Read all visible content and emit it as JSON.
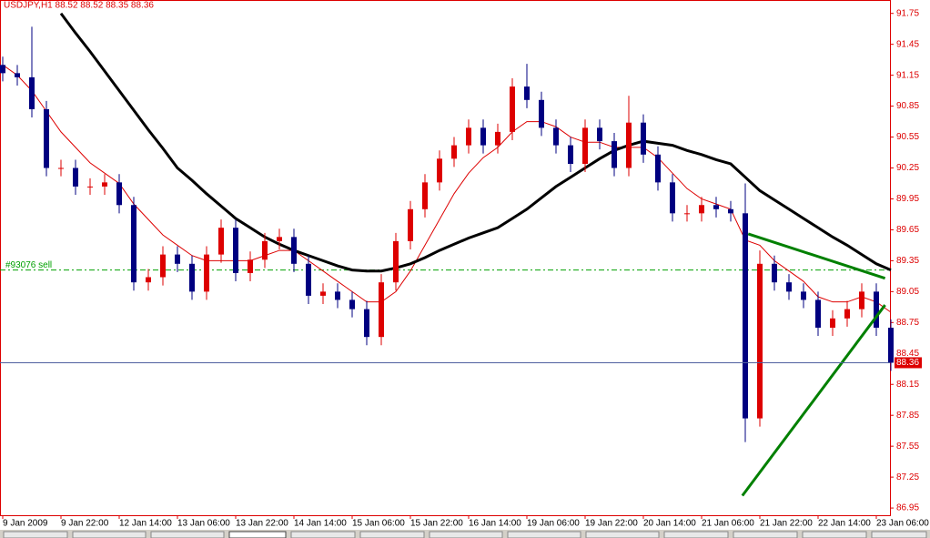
{
  "chart_data": {
    "type": "candlestick",
    "title": "USDJPY,H1 88.52 88.52 88.35 88.36",
    "categories": [
      "9 Jan 2009",
      null,
      null,
      null,
      "9 Jan 22:00",
      null,
      null,
      null,
      "12 Jan 14:00",
      null,
      null,
      null,
      "13 Jan 06:00",
      null,
      null,
      null,
      "13 Jan 22:00",
      null,
      null,
      null,
      "14 Jan 14:00",
      null,
      null,
      null,
      "15 Jan 06:00",
      null,
      null,
      null,
      "15 Jan 22:00",
      null,
      null,
      null,
      "16 Jan 14:00",
      null,
      null,
      null,
      "19 Jan 06:00",
      null,
      null,
      null,
      "19 Jan 22:00",
      null,
      null,
      null,
      "20 Jan 14:00",
      null,
      null,
      null,
      "21 Jan 06:00",
      null,
      null,
      null,
      "21 Jan 22:00",
      null,
      null,
      null,
      "22 Jan 14:00",
      null,
      null,
      null,
      "23 Jan 06:00",
      null
    ],
    "open": [
      91.25,
      91.17,
      91.13,
      90.82,
      90.25,
      90.25,
      90.07,
      90.07,
      90.11,
      89.89,
      89.14,
      89.19,
      89.41,
      89.32,
      89.05,
      89.41,
      89.67,
      89.23,
      89.36,
      89.54,
      89.58,
      89.32,
      89.01,
      89.05,
      88.97,
      88.88,
      88.61,
      89.14,
      89.54,
      89.85,
      90.11,
      90.34,
      90.47,
      90.64,
      90.47,
      90.6,
      91.04,
      90.91,
      90.64,
      90.47,
      90.29,
      90.64,
      90.51,
      90.25,
      90.69,
      90.38,
      90.11,
      89.81,
      89.81,
      89.89,
      89.85,
      89.81,
      87.82,
      89.32,
      89.14,
      89.05,
      88.97,
      88.7,
      88.79,
      88.88,
      89.05,
      88.7
    ],
    "high": [
      91.33,
      91.25,
      91.62,
      90.9,
      90.33,
      90.33,
      90.15,
      90.19,
      90.19,
      89.97,
      89.27,
      89.49,
      89.49,
      89.4,
      89.49,
      89.75,
      89.75,
      89.44,
      89.62,
      89.66,
      89.66,
      89.4,
      89.13,
      89.13,
      89.05,
      88.96,
      89.22,
      89.62,
      89.93,
      90.19,
      90.42,
      90.55,
      90.72,
      90.72,
      90.68,
      91.12,
      91.26,
      90.99,
      90.72,
      90.55,
      90.72,
      90.72,
      90.59,
      90.95,
      90.77,
      90.46,
      90.19,
      89.89,
      89.97,
      89.97,
      89.93,
      90.1,
      89.45,
      89.4,
      89.22,
      89.13,
      89.05,
      88.87,
      88.96,
      89.13,
      89.13,
      88.78
    ],
    "low": [
      91.09,
      91.05,
      90.74,
      90.17,
      90.17,
      89.99,
      89.99,
      89.99,
      89.81,
      89.06,
      89.06,
      89.11,
      89.24,
      88.97,
      88.97,
      89.33,
      89.15,
      89.15,
      89.28,
      89.46,
      89.24,
      88.93,
      88.93,
      88.89,
      88.8,
      88.53,
      88.53,
      89.06,
      89.46,
      89.77,
      90.03,
      90.26,
      90.39,
      90.39,
      90.39,
      90.52,
      90.83,
      90.56,
      90.39,
      90.21,
      90.21,
      90.43,
      90.17,
      90.17,
      90.3,
      90.03,
      89.73,
      89.73,
      89.73,
      89.77,
      89.73,
      87.59,
      87.74,
      89.06,
      88.97,
      88.89,
      88.62,
      88.62,
      88.71,
      88.8,
      88.62,
      88.28
    ],
    "close": [
      91.17,
      91.13,
      90.82,
      90.25,
      90.25,
      90.07,
      90.07,
      90.11,
      89.89,
      89.14,
      89.19,
      89.41,
      89.32,
      89.05,
      89.41,
      89.67,
      89.23,
      89.36,
      89.54,
      89.58,
      89.32,
      89.01,
      89.05,
      88.97,
      88.88,
      88.61,
      89.14,
      89.54,
      89.85,
      90.11,
      90.34,
      90.47,
      90.64,
      90.47,
      90.6,
      91.04,
      90.91,
      90.64,
      90.47,
      90.29,
      90.64,
      90.51,
      90.25,
      90.69,
      90.38,
      90.11,
      89.81,
      89.81,
      89.89,
      89.85,
      89.81,
      87.82,
      89.32,
      89.14,
      89.05,
      88.97,
      88.7,
      88.79,
      88.88,
      89.05,
      88.7,
      88.36
    ],
    "bull_color": "#dd0000",
    "bear_color": "#000080",
    "overlays": [
      {
        "color": "#dd0000",
        "width": 1,
        "values": [
          91.25,
          91.15,
          91.0,
          90.8,
          90.6,
          90.45,
          90.3,
          90.2,
          90.1,
          89.9,
          89.75,
          89.6,
          89.5,
          89.4,
          89.35,
          89.35,
          89.35,
          89.35,
          89.4,
          89.45,
          89.45,
          89.35,
          89.25,
          89.15,
          89.05,
          88.95,
          88.95,
          89.05,
          89.25,
          89.5,
          89.75,
          90.0,
          90.2,
          90.35,
          90.45,
          90.6,
          90.7,
          90.7,
          90.65,
          90.55,
          90.5,
          90.5,
          90.45,
          90.45,
          90.45,
          90.35,
          90.2,
          90.05,
          89.95,
          89.9,
          89.85,
          89.55,
          89.5,
          89.35,
          89.25,
          89.15,
          89.0,
          88.95,
          88.95,
          89.0,
          88.95,
          88.85
        ]
      },
      {
        "color": "#000000",
        "width": 3,
        "values": [
          null,
          null,
          null,
          null,
          91.75,
          91.56,
          91.38,
          91.19,
          91.0,
          90.81,
          90.62,
          90.44,
          90.25,
          90.13,
          90.0,
          89.88,
          89.76,
          89.67,
          89.58,
          89.51,
          89.45,
          89.4,
          89.35,
          89.3,
          89.26,
          89.25,
          89.25,
          89.28,
          89.32,
          89.38,
          89.45,
          89.51,
          89.57,
          89.62,
          89.67,
          89.76,
          89.85,
          89.96,
          90.07,
          90.16,
          90.25,
          90.34,
          90.42,
          90.47,
          90.51,
          90.49,
          90.47,
          90.42,
          90.38,
          90.33,
          90.29,
          90.16,
          90.03,
          89.94,
          89.85,
          89.76,
          89.67,
          89.58,
          89.5,
          89.41,
          89.32,
          89.26
        ]
      }
    ],
    "trendlines": [
      {
        "color": "#008000",
        "x": [
          51.2,
          60.6
        ],
        "y": [
          89.61,
          89.18
        ]
      },
      {
        "color": "#008000",
        "x": [
          50.8,
          60.6
        ],
        "y": [
          87.07,
          88.92
        ]
      }
    ],
    "order_line": {
      "label": "#93076 sell",
      "value": 89.26,
      "color": "#00a000"
    },
    "price_line": {
      "value": 88.36,
      "color": "#5060a0",
      "label_color": "#dd0000"
    },
    "ylim": [
      86.88,
      91.88
    ],
    "yticks": [
      86.95,
      87.25,
      87.55,
      87.85,
      88.15,
      88.45,
      88.75,
      89.05,
      89.35,
      89.65,
      89.95,
      90.25,
      90.55,
      90.85,
      91.15,
      91.45,
      91.75
    ],
    "axis_color": "#dd0000"
  }
}
